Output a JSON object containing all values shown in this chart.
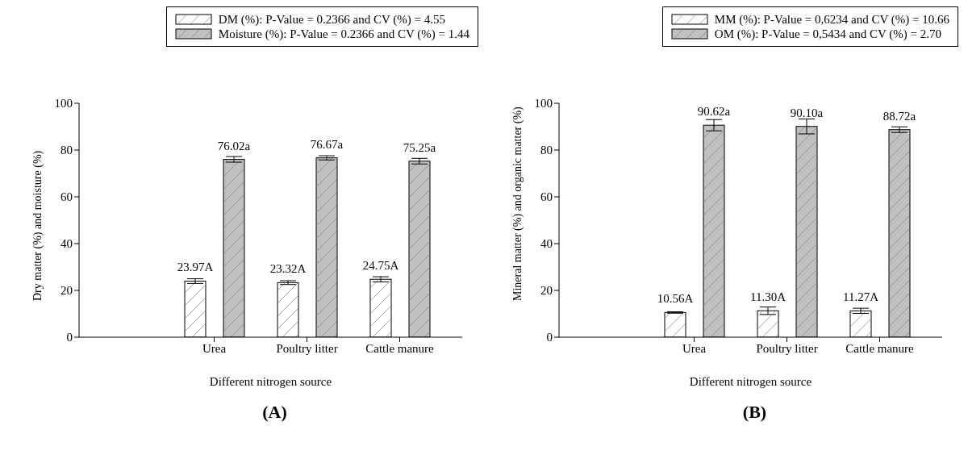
{
  "chart_data": [
    {
      "type": "bar",
      "categories": [
        "Urea",
        "Poultry litter",
        "Cattle manure"
      ],
      "xlabel": "Different nitrogen source",
      "ylabel": "Dry matter (%) and moisture (%)",
      "ylim": [
        0,
        100
      ],
      "yticks": [
        0,
        20,
        40,
        60,
        80,
        100
      ],
      "legend": "top right",
      "grid": false,
      "series": [
        {
          "name": "DM (%): P-Value = 0.2366 and CV (%) = 4.55",
          "color": "#ffffff",
          "values": [
            23.97,
            23.32,
            24.75
          ],
          "errors": [
            1.0,
            0.8,
            1.1
          ],
          "value_labels": [
            "23.97A",
            "23.32A",
            "24.75A"
          ]
        },
        {
          "name": "Moisture (%): P-Value = 0.2366 and CV (%) = 1.44",
          "color": "#c0c0c0",
          "values": [
            76.02,
            76.67,
            75.25
          ],
          "errors": [
            1.2,
            0.9,
            1.2
          ],
          "value_labels": [
            "76.02a",
            "76.67a",
            "75.25a"
          ]
        }
      ],
      "annotations": [
        "(A)"
      ]
    },
    {
      "type": "bar",
      "categories": [
        "Urea",
        "Poultry litter",
        "Cattle manure"
      ],
      "xlabel": "Different nitrogen source",
      "ylabel": "Mineral matter (%) and organic matter (%)",
      "ylim": [
        0,
        100
      ],
      "yticks": [
        0,
        20,
        40,
        60,
        80,
        100
      ],
      "legend": "top right",
      "grid": false,
      "series": [
        {
          "name": "MM (%): P-Value = 0,6234 and CV (%) = 10.66",
          "color": "#ffffff",
          "values": [
            10.56,
            11.3,
            11.27
          ],
          "errors": [
            0.3,
            1.6,
            1.1
          ],
          "value_labels": [
            "10.56A",
            "11.30A",
            "11.27A"
          ]
        },
        {
          "name": "OM (%): P-Value = 0,5434 and CV (%) = 2.70",
          "color": "#c0c0c0",
          "values": [
            90.62,
            90.1,
            88.72
          ],
          "errors": [
            2.4,
            3.2,
            1.2
          ],
          "value_labels": [
            "90.62a",
            "90.10a",
            "88.72a"
          ]
        }
      ],
      "annotations": [
        "(B)"
      ]
    }
  ]
}
